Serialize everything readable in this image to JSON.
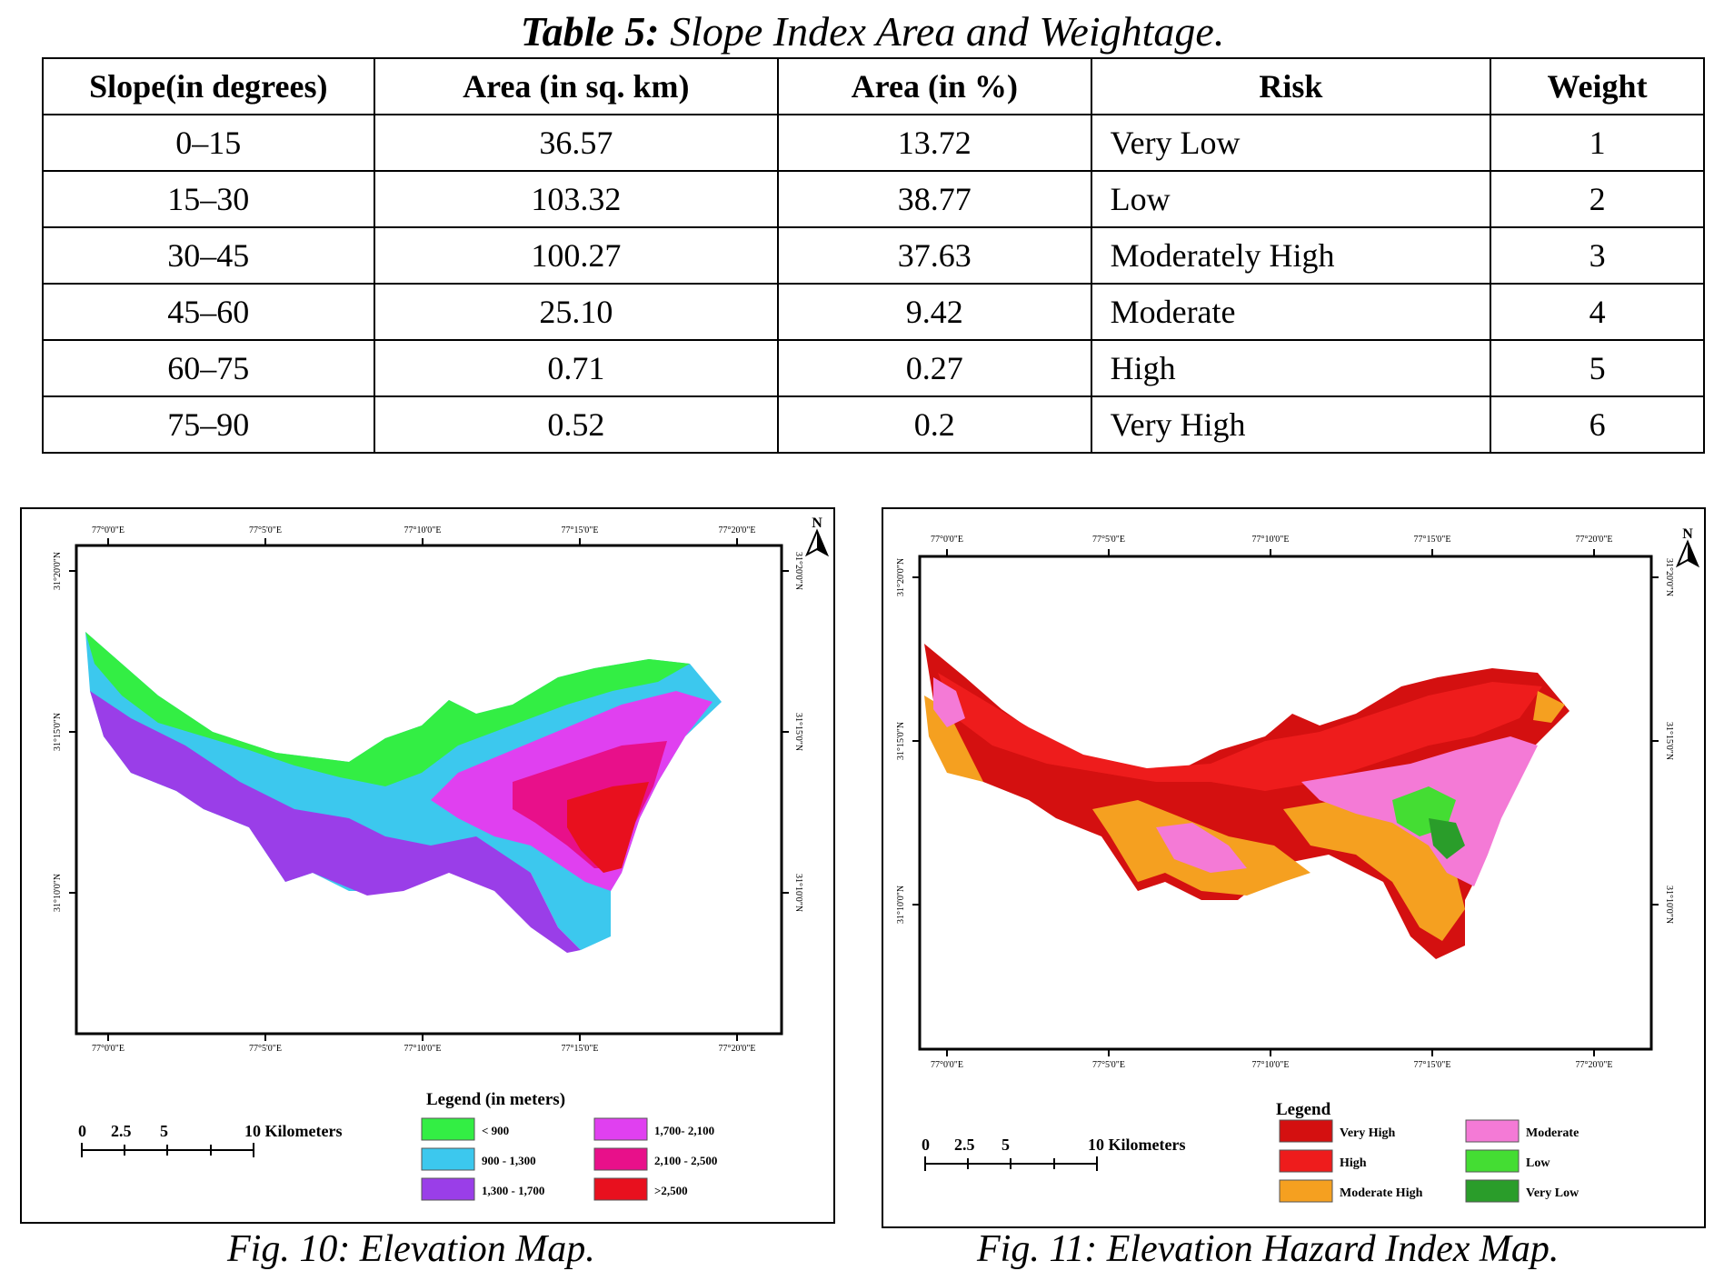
{
  "table": {
    "caption_label": "Table 5:",
    "caption_text": " Slope Index Area and Weightage.",
    "headers": [
      "Slope(in degrees)",
      "Area (in sq. km)",
      "Area (in %)",
      "Risk",
      "Weight"
    ],
    "rows": [
      [
        "0–15",
        "36.57",
        "13.72",
        "Very Low",
        "1"
      ],
      [
        "15–30",
        "103.32",
        "38.77",
        "Low",
        "2"
      ],
      [
        "30–45",
        "100.27",
        "37.63",
        "Moderately High",
        "3"
      ],
      [
        "45–60",
        "25.10",
        "9.42",
        "Moderate",
        "4"
      ],
      [
        "60–75",
        "0.71",
        "0.27",
        "High",
        "5"
      ],
      [
        "75–90",
        "0.52",
        "0.2",
        "Very High",
        "6"
      ]
    ]
  },
  "map_common": {
    "lon_ticks": [
      "77°0'0\"E",
      "77°5'0\"E",
      "77°10'0\"E",
      "77°15'0\"E",
      "77°20'0\"E"
    ],
    "lat_ticks": [
      "31°20'0\"N",
      "31°15'0\"N",
      "31°10'0\"N"
    ],
    "scale_numbers": [
      "0",
      "2.5",
      "5",
      "10 Kilometers"
    ],
    "north_label": "N"
  },
  "fig10": {
    "legend_title": "Legend (in meters)",
    "legend": [
      {
        "label": "< 900",
        "color": "#33ee44"
      },
      {
        "label": "900 - 1,300",
        "color": "#3cc8ee"
      },
      {
        "label": "1,300 - 1,700",
        "color": "#9a3ee8"
      },
      {
        "label": "1,700- 2,100",
        "color": "#e040f0"
      },
      {
        "label": "2,100 - 2,500",
        "color": "#e8108a"
      },
      {
        "label": ">2,500",
        "color": "#e8101e"
      }
    ],
    "caption": "Fig. 10: Elevation Map."
  },
  "fig11": {
    "legend_title": "Legend",
    "legend": [
      {
        "label": "Very High",
        "color": "#d41010"
      },
      {
        "label": "High",
        "color": "#ee1c1c"
      },
      {
        "label": "Moderate High",
        "color": "#f5a020"
      },
      {
        "label": "Moderate",
        "color": "#f47ad6"
      },
      {
        "label": "Low",
        "color": "#44dd33"
      },
      {
        "label": "Very Low",
        "color": "#2a9d2a"
      }
    ],
    "caption": "Fig. 11: Elevation Hazard Index Map."
  }
}
